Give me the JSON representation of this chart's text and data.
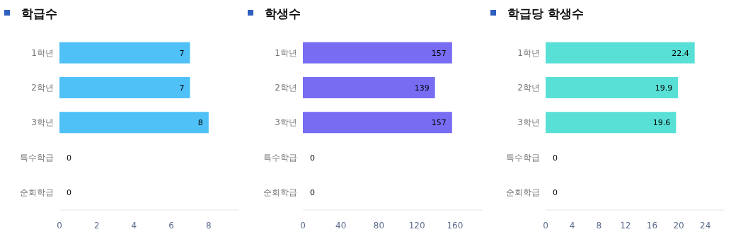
{
  "chart_data": [
    {
      "type": "bar",
      "orientation": "horizontal",
      "title": "학급수",
      "categories": [
        "1학년",
        "2학년",
        "3학년",
        "특수학급",
        "순회학급"
      ],
      "values": [
        7,
        7,
        8,
        0,
        0
      ],
      "color": "#4fc1f7",
      "xlim": [
        0,
        9.6
      ],
      "xticks": [
        0,
        2,
        4,
        6,
        8
      ],
      "data_labels": true
    },
    {
      "type": "bar",
      "orientation": "horizontal",
      "title": "학생수",
      "categories": [
        "1학년",
        "2학년",
        "3학년",
        "특수학급",
        "순회학급"
      ],
      "values": [
        157,
        139,
        157,
        0,
        0
      ],
      "color": "#776cf2",
      "xlim": [
        0,
        188.4
      ],
      "xticks": [
        0,
        40,
        80,
        120,
        160
      ],
      "data_labels": true
    },
    {
      "type": "bar",
      "orientation": "horizontal",
      "title": "학급당 학생수",
      "categories": [
        "1학년",
        "2학년",
        "3학년",
        "특수학급",
        "순회학급"
      ],
      "values": [
        22.4,
        19.9,
        19.6,
        0,
        0
      ],
      "color": "#59e0d6",
      "xlim": [
        0,
        26.9
      ],
      "xticks": [
        0,
        4,
        8,
        12,
        16,
        20,
        24
      ],
      "data_labels": true
    }
  ]
}
